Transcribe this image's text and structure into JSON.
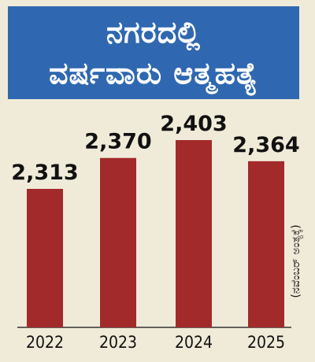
{
  "title_lines": [
    "ನಗರದಲ್ಲಿ",
    "ವರ್ಷವಾರು ಆತ್ಮಹತ್ಯೆ"
  ],
  "note": "(ನವೆಂಬರ್‌ ಅಂತ್ಯಕ್ಕೆ)",
  "colors": {
    "bar": "#a32a2a",
    "title_bg": "#2f68b0",
    "background": "#f0ebd9"
  },
  "chart_data": {
    "type": "bar",
    "categories": [
      "2022",
      "2023",
      "2024",
      "2025"
    ],
    "values": [
      2313,
      2370,
      2403,
      2364
    ],
    "value_labels": [
      "2,313",
      "2,370",
      "2,403",
      "2,364"
    ],
    "title": "ನಗರದಲ್ಲಿ ವರ್ಷವಾರು ಆತ್ಮಹತ್ಯೆ",
    "xlabel": "",
    "ylabel": "",
    "grid": false,
    "legend": "none"
  }
}
